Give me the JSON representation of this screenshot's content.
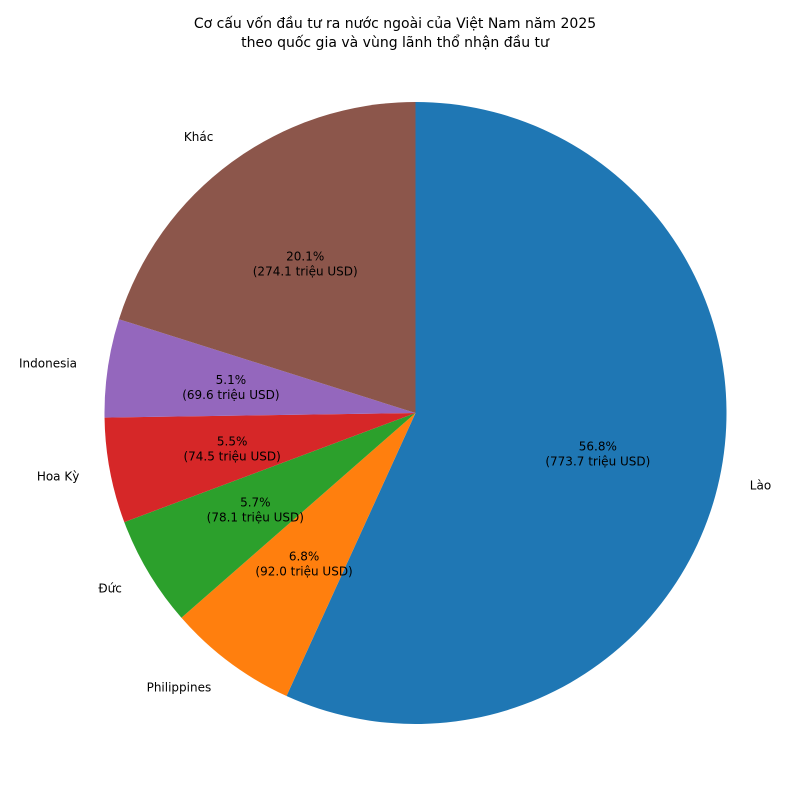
{
  "chart_data": {
    "type": "pie",
    "title": "Cơ cấu vốn đầu tư ra nước ngoài của Việt Nam năm 2025",
    "subtitle": "theo quốc gia và vùng lãnh thổ nhận đầu tư",
    "start_angle_deg": 90,
    "direction": "clockwise",
    "slices": [
      {
        "label": "Lào",
        "percent_label": "56.8%",
        "value_label": "(773.7 triệu USD)",
        "value": 773.7,
        "color": "#1f77b4"
      },
      {
        "label": "Philippines",
        "percent_label": "6.8%",
        "value_label": "(92.0 triệu USD)",
        "value": 92.0,
        "color": "#ff7f0e"
      },
      {
        "label": "Đức",
        "percent_label": "5.7%",
        "value_label": "(78.1 triệu USD)",
        "value": 78.1,
        "color": "#2ca02c"
      },
      {
        "label": "Hoa Kỳ",
        "percent_label": "5.5%",
        "value_label": "(74.5 triệu USD)",
        "value": 74.5,
        "color": "#d62728"
      },
      {
        "label": "Indonesia",
        "percent_label": "5.1%",
        "value_label": "(69.6 triệu USD)",
        "value": 69.6,
        "color": "#9467bd"
      },
      {
        "label": "Khác",
        "percent_label": "20.1%",
        "value_label": "(274.1 triệu USD)",
        "value": 274.1,
        "color": "#8c564b"
      }
    ]
  }
}
